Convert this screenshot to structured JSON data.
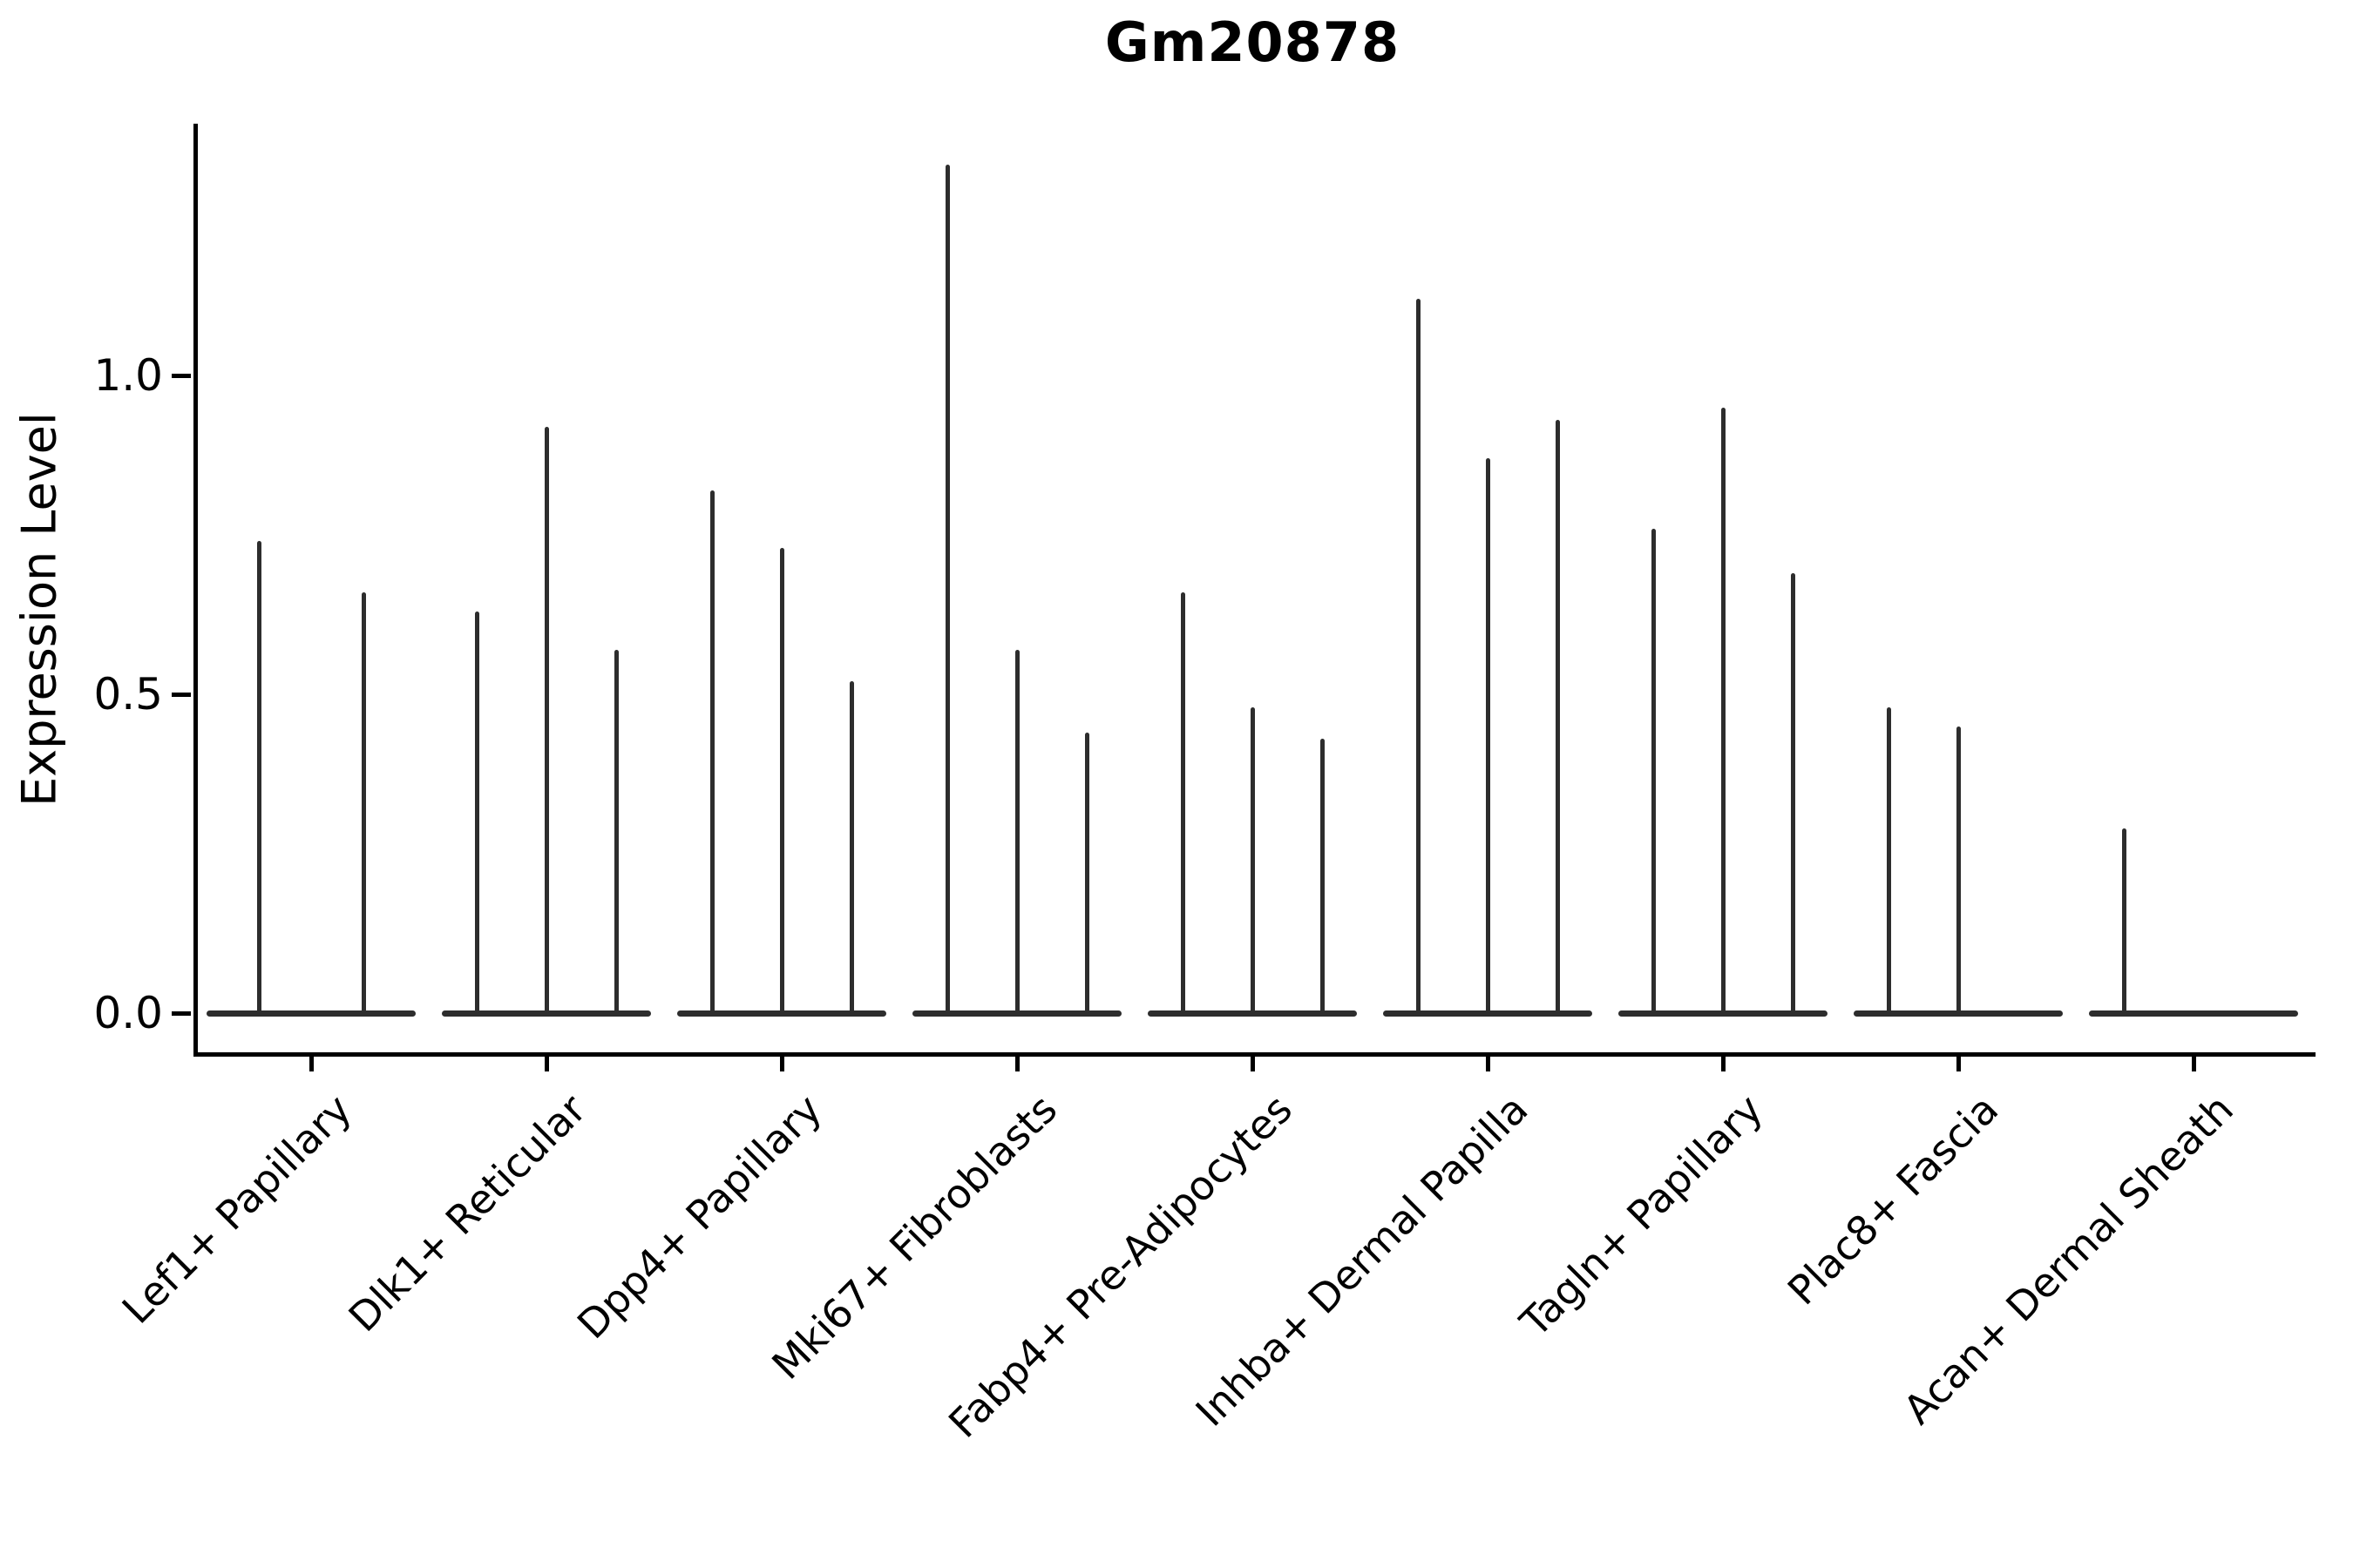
{
  "title": "Gm20878",
  "y_axis": {
    "label": "Expression Level",
    "tick_labels": [
      "1.0",
      "0.5",
      "0.0"
    ],
    "tick_values": [
      1.0,
      0.5,
      0.0
    ]
  },
  "colors": {
    "spike": "#2d2d2d",
    "axis": "#000000",
    "background": "#ffffff"
  },
  "chart_data": {
    "type": "violin",
    "title": "Gm20878",
    "xlabel": "",
    "ylabel": "Expression Level",
    "ylim": [
      0,
      1.4
    ],
    "yticks": [
      0.0,
      0.5,
      1.0
    ],
    "grid": false,
    "legend": "none",
    "style_note": "Seurat-style VlnPlot; each violin collapsed to a flat base at 0 with a single thin spike reaching its maximum expression value; x tick labels rotated 45 degrees",
    "categories": [
      "Lef1+ Papillary",
      "Dlk1+ Reticular",
      "Dpp4+ Papillary",
      "Mki67+ Fibroblasts",
      "Fabp4+ Pre-Adipocytes",
      "Inhba+ Dermal Papilla",
      "Tagln+ Papillary",
      "Plac8+ Fascia",
      "Acan+ Dermal Sheath"
    ],
    "groups": [
      {
        "label": "Lef1+ Papillary",
        "spike_maxima": [
          0.74,
          0.66
        ]
      },
      {
        "label": "Dlk1+ Reticular",
        "spike_maxima": [
          0.63,
          0.92,
          0.57
        ]
      },
      {
        "label": "Dpp4+ Papillary",
        "spike_maxima": [
          0.82,
          0.73,
          0.52
        ]
      },
      {
        "label": "Mki67+ Fibroblasts",
        "spike_maxima": [
          1.33,
          0.57,
          0.44
        ]
      },
      {
        "label": "Fabp4+ Pre-Adipocytes",
        "spike_maxima": [
          0.66,
          0.48,
          0.43
        ]
      },
      {
        "label": "Inhba+ Dermal Papilla",
        "spike_maxima": [
          1.12,
          0.87,
          0.93
        ]
      },
      {
        "label": "Tagln+ Papillary",
        "spike_maxima": [
          0.76,
          0.95,
          0.69
        ]
      },
      {
        "label": "Plac8+ Fascia",
        "spike_maxima": [
          0.48,
          0.45,
          0.0
        ]
      },
      {
        "label": "Acan+ Dermal Sheath",
        "spike_maxima": [
          0.29,
          0.0,
          0.0
        ]
      }
    ]
  }
}
